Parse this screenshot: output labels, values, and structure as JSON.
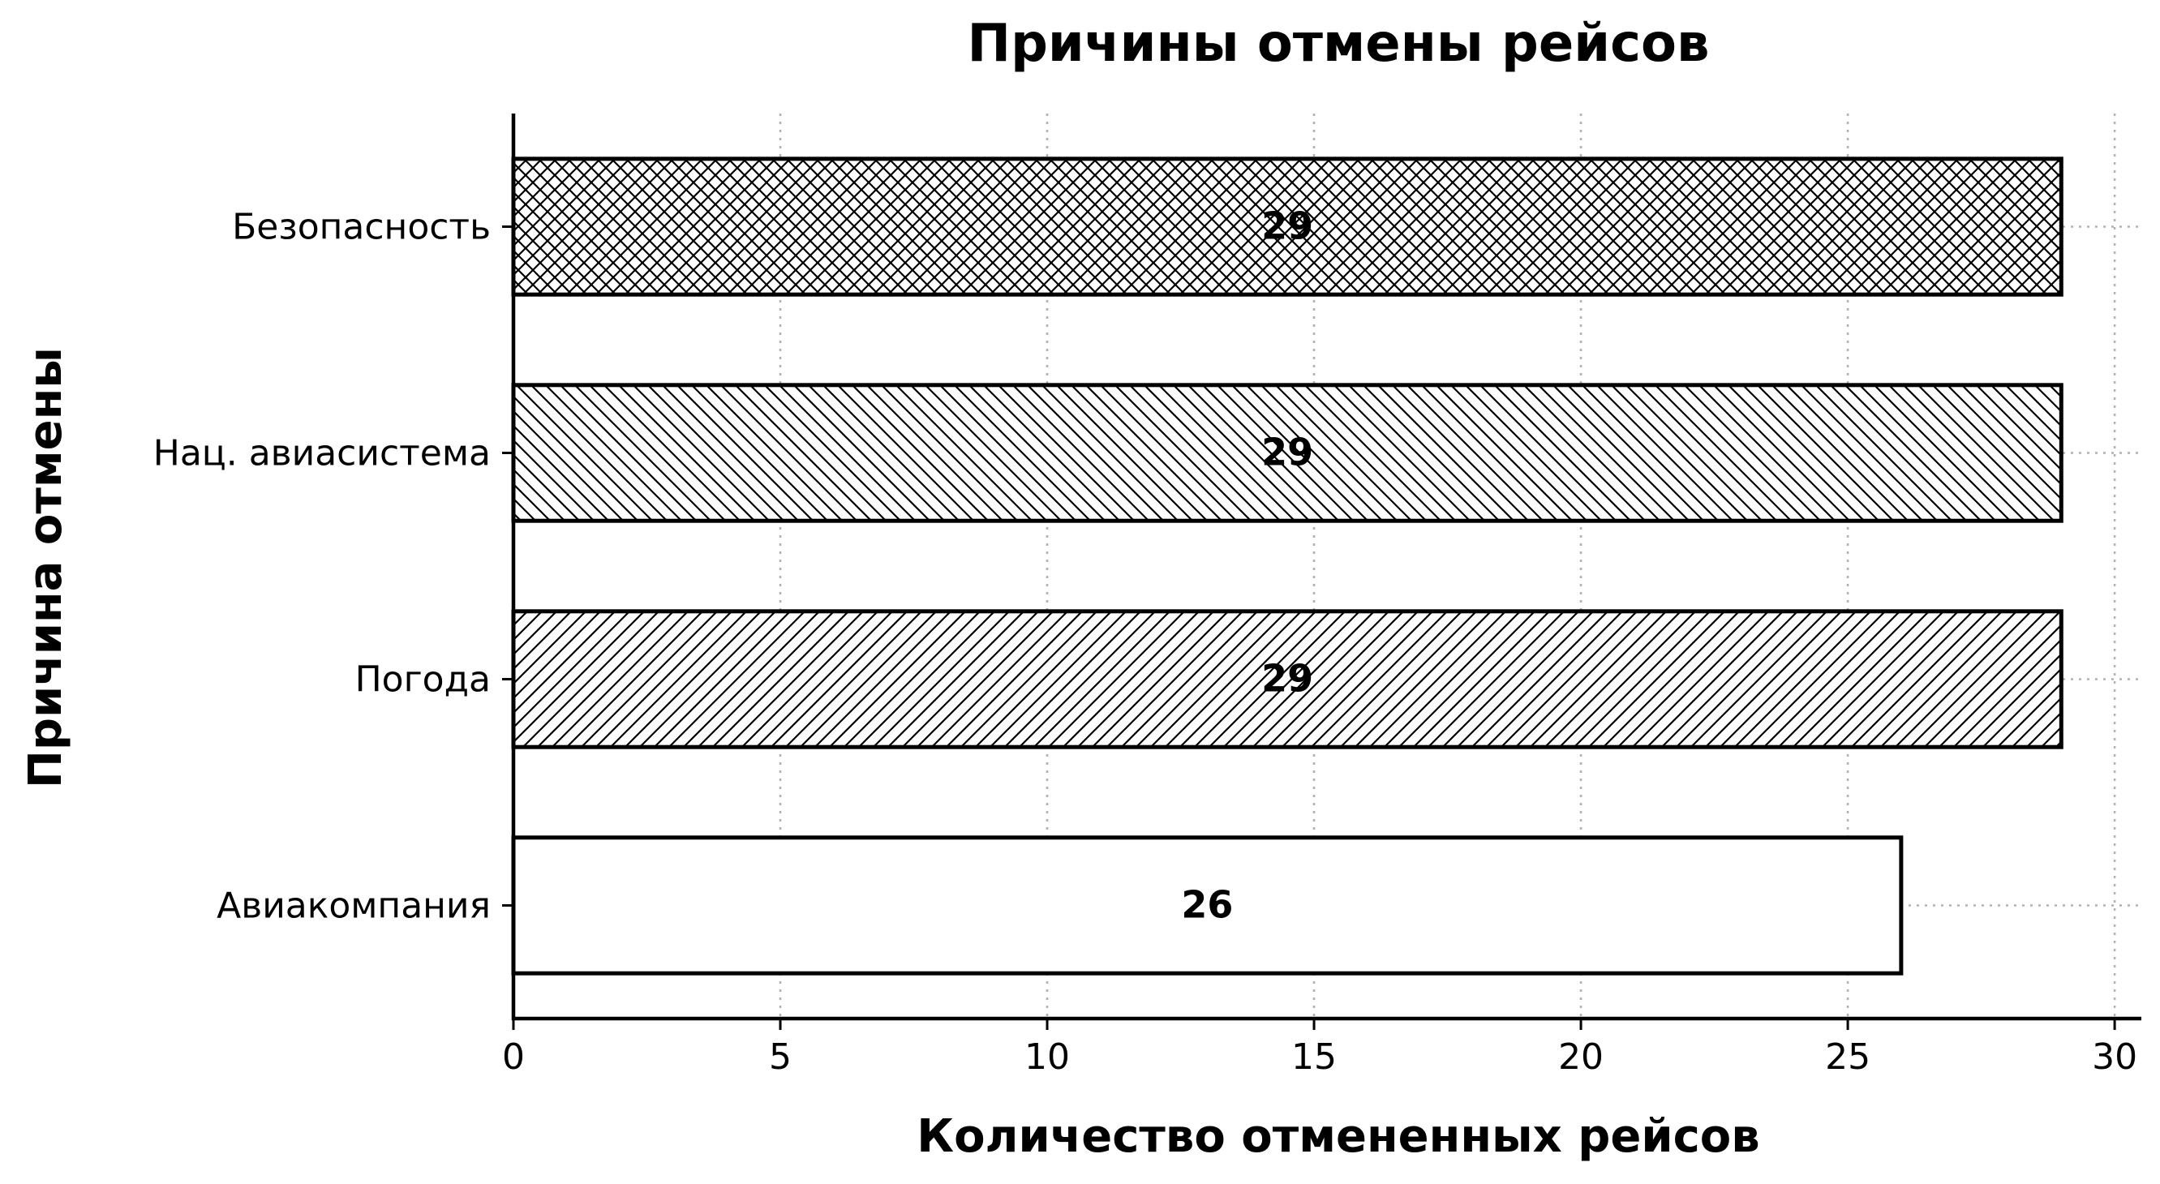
{
  "chart_data": {
    "type": "bar",
    "orientation": "horizontal",
    "title": "Причины отмены рейсов",
    "xlabel": "Количество отмененных рейсов",
    "ylabel": "Причина отмены",
    "categories": [
      "Авиакомпания",
      "Погода",
      "Нац. авиасистема",
      "Безопасность"
    ],
    "values": [
      26,
      29,
      29,
      29
    ],
    "data_labels": [
      "26",
      "29",
      "29",
      "29"
    ],
    "hatches": [
      "none",
      "forward-diagonal",
      "back-diagonal",
      "crosshatch"
    ],
    "xlim": [
      0,
      30.5
    ],
    "xticks": [
      0,
      5,
      10,
      15,
      20,
      25,
      30
    ],
    "xtick_labels": [
      "0",
      "5",
      "10",
      "15",
      "20",
      "25",
      "30"
    ],
    "grid": true,
    "legend": "none",
    "colors": {
      "bar_fill": "#ffffff",
      "bar_edge": "#000000",
      "hatch": "#000000",
      "grid": "#b0b0b0",
      "text": "#000000"
    }
  }
}
